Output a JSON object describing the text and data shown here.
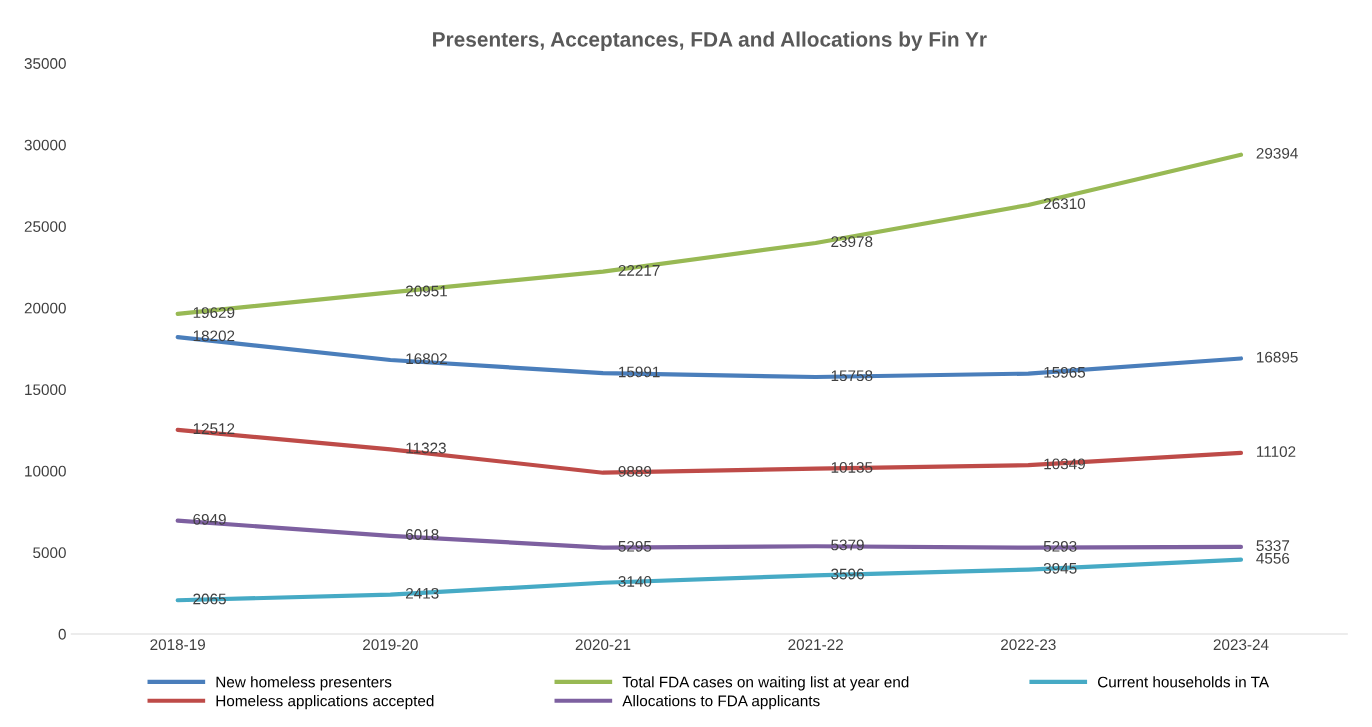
{
  "chart_data": {
    "type": "line",
    "title": "Presenters, Acceptances, FDA and Allocations by Fin Yr",
    "categories": [
      "2018-19",
      "2019-20",
      "2020-21",
      "2021-22",
      "2022-23",
      "2023-24"
    ],
    "series": [
      {
        "name": "New homeless presenters",
        "color": "#4a7ebb",
        "values": [
          18202,
          16802,
          15991,
          15758,
          15965,
          16895
        ]
      },
      {
        "name": "Homeless applications accepted",
        "color": "#be4b48",
        "values": [
          12512,
          11323,
          9889,
          10135,
          10349,
          11102
        ]
      },
      {
        "name": "Total FDA cases on waiting list at year end",
        "color": "#98b954",
        "values": [
          19629,
          20951,
          22217,
          23978,
          26310,
          29394
        ]
      },
      {
        "name": "Allocations to FDA applicants",
        "color": "#7d60a0",
        "values": [
          6949,
          6018,
          5295,
          5379,
          5293,
          5337
        ]
      },
      {
        "name": "Current households in TA",
        "color": "#46aac5",
        "values": [
          2065,
          2413,
          3140,
          3596,
          3945,
          4556
        ]
      }
    ],
    "ylim": [
      0,
      35000
    ],
    "yticks": [
      0,
      5000,
      10000,
      15000,
      20000,
      25000,
      30000,
      35000
    ],
    "data_labels": true,
    "grid": false,
    "legend": "bottom",
    "marker": "none",
    "line_style": "solid"
  }
}
